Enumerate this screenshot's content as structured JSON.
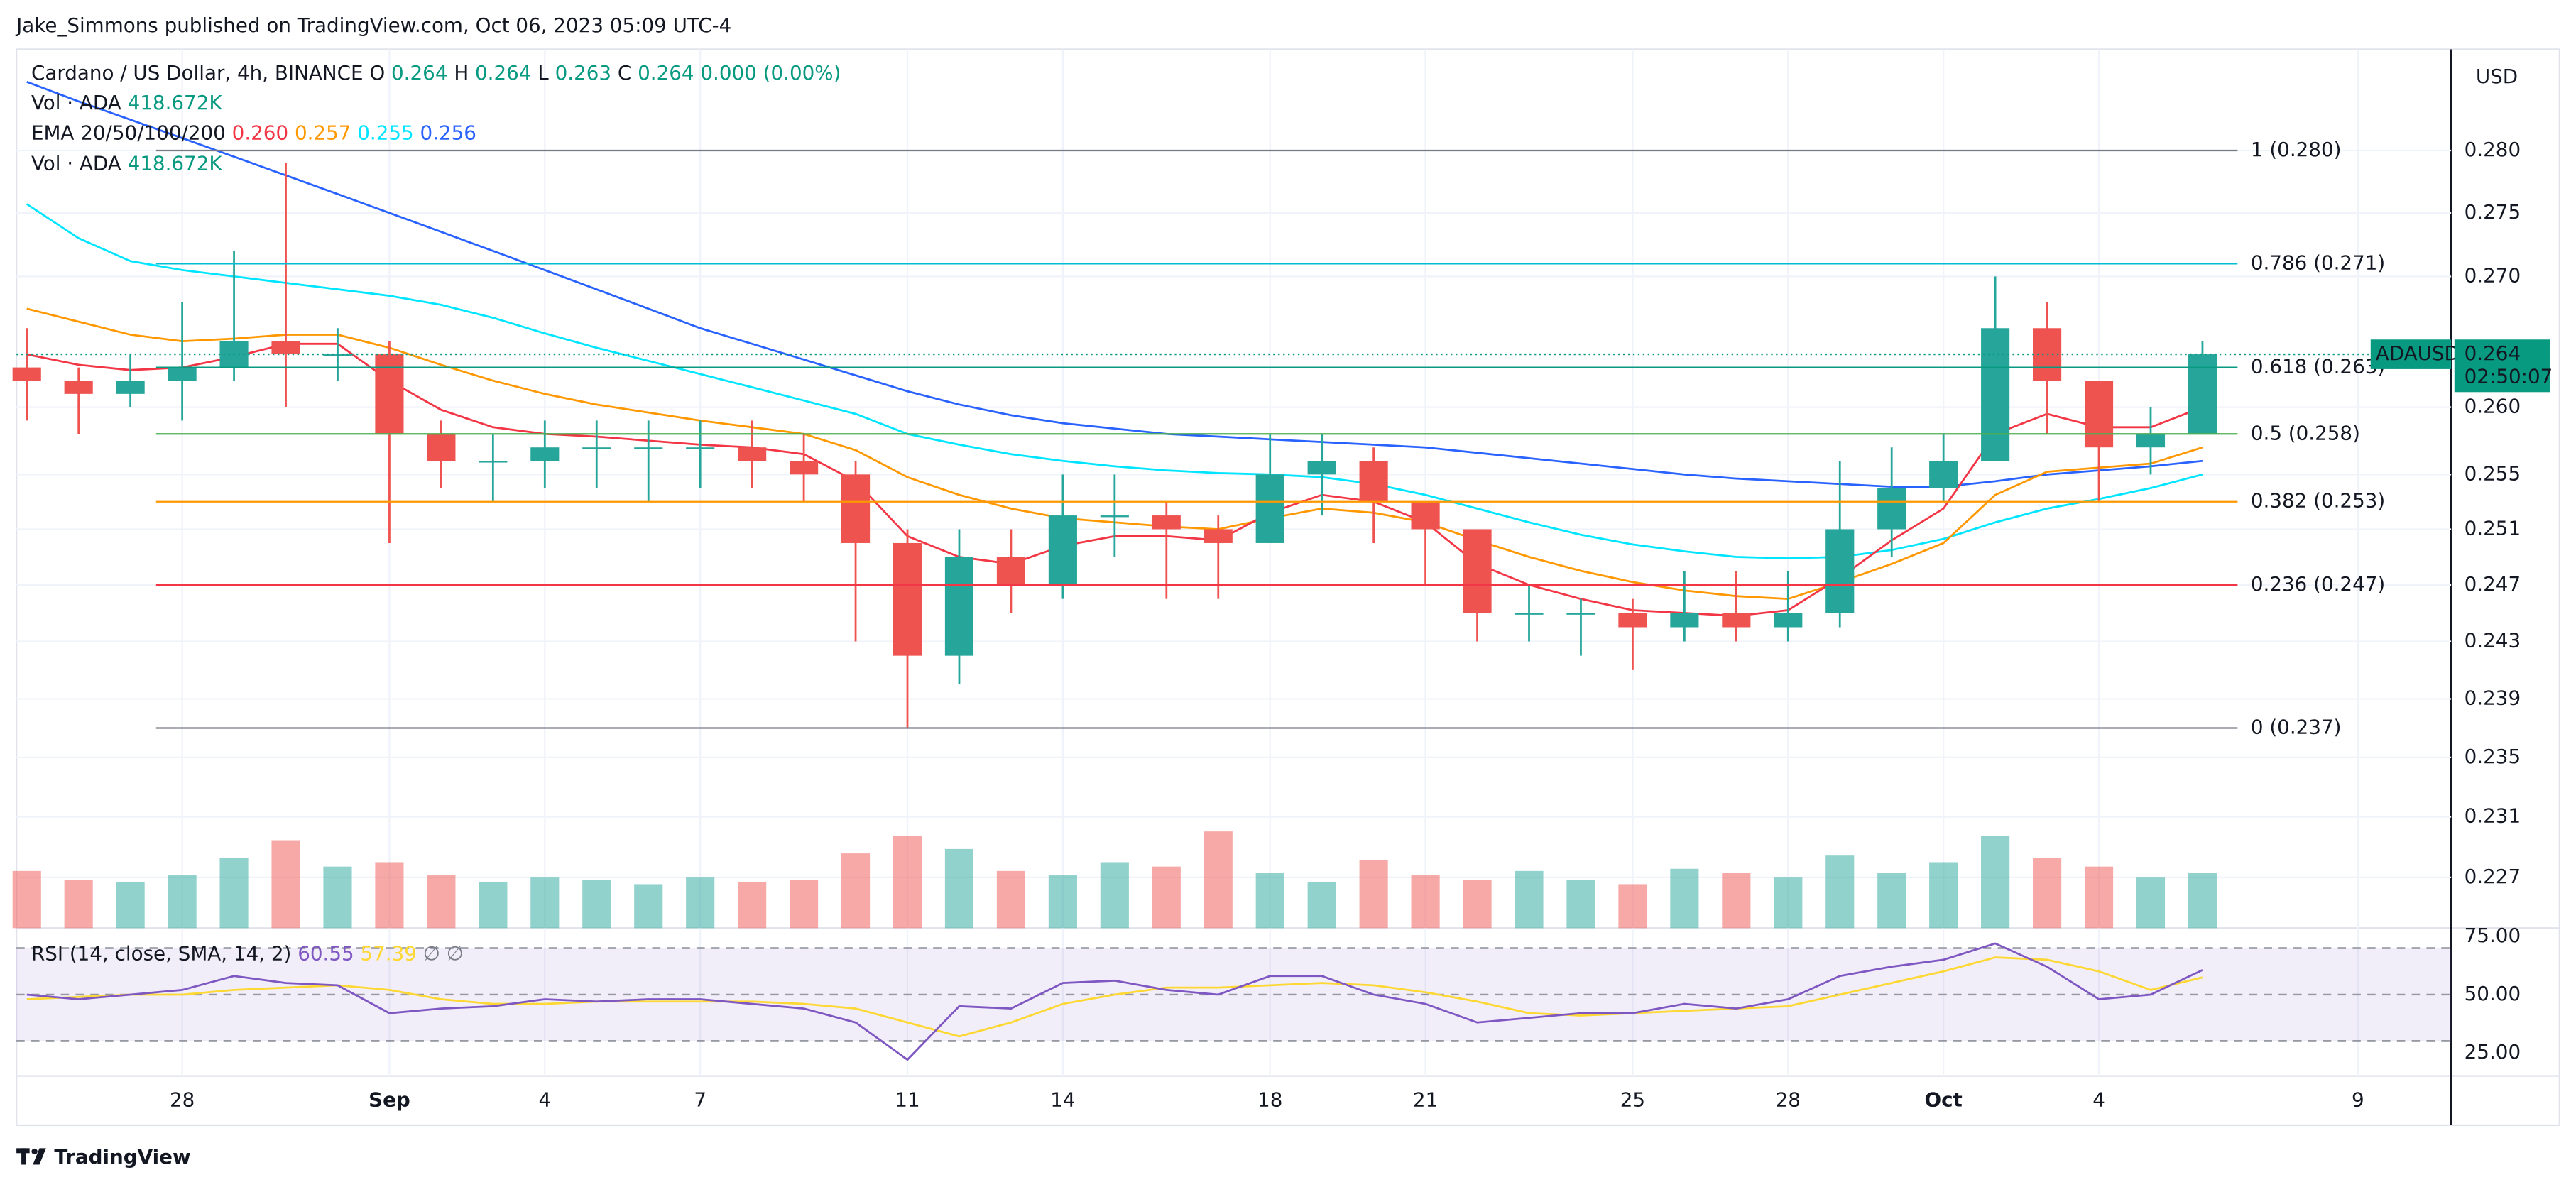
{
  "header": {
    "publisher": "Jake_Simmons published on TradingView.com, Oct 06, 2023 05:09 UTC-4"
  },
  "footer": {
    "brand": "TradingView"
  },
  "chart_data": {
    "type": "candlestick",
    "title": "Cardano / US Dollar, 4h, BINANCE",
    "ohlc_legend": [
      {
        "label": "O",
        "value": "0.264"
      },
      {
        "label": "H",
        "value": "0.264"
      },
      {
        "label": "L",
        "value": "0.263"
      },
      {
        "label": "C",
        "value": "0.264"
      }
    ],
    "change": "0.000 (0.00%)",
    "legend_color": "#089981",
    "indicator_legends": [
      {
        "label": "Vol · ADA",
        "values": [
          {
            "text": "418.672K",
            "color": "#089981"
          }
        ]
      },
      {
        "label": "EMA 20/50/100/200",
        "values": [
          {
            "text": "0.260",
            "color": "#f23645"
          },
          {
            "text": "0.257",
            "color": "#ff9800"
          },
          {
            "text": "0.255",
            "color": "#00e5ff"
          },
          {
            "text": "0.256",
            "color": "#2962ff"
          }
        ]
      },
      {
        "label": "Vol · ADA",
        "values": [
          {
            "text": "418.672K",
            "color": "#089981"
          }
        ]
      }
    ],
    "currency": "USD",
    "up_color": "#26a69a",
    "down_color": "#ef5350",
    "x": [
      -3,
      -2,
      -1,
      0,
      1,
      2,
      3,
      4,
      5,
      6,
      7,
      8,
      9,
      10,
      11,
      12,
      13,
      14,
      15,
      16,
      17,
      18,
      19,
      20,
      21,
      22,
      23,
      24,
      25,
      26,
      27,
      28,
      29,
      30,
      31,
      32,
      33,
      34,
      35,
      36,
      37,
      38,
      39
    ],
    "xlim": [
      -3.2,
      43.8
    ],
    "xticks": [
      {
        "value": 0,
        "label": "28"
      },
      {
        "value": 4,
        "label": "Sep"
      },
      {
        "value": 7,
        "label": "4"
      },
      {
        "value": 10,
        "label": "7"
      },
      {
        "value": 14,
        "label": "11"
      },
      {
        "value": 17,
        "label": "14"
      },
      {
        "value": 21,
        "label": "18"
      },
      {
        "value": 24,
        "label": "21"
      },
      {
        "value": 28,
        "label": "25"
      },
      {
        "value": 31,
        "label": "28"
      },
      {
        "value": 34,
        "label": "Oct"
      },
      {
        "value": 37,
        "label": "4"
      },
      {
        "value": 42,
        "label": "9"
      }
    ],
    "open": [
      0.263,
      0.262,
      0.261,
      0.262,
      0.263,
      0.265,
      0.264,
      0.264,
      0.258,
      0.256,
      0.256,
      0.257,
      0.257,
      0.257,
      0.257,
      0.256,
      0.255,
      0.25,
      0.242,
      0.249,
      0.247,
      0.252,
      0.252,
      0.251,
      0.25,
      0.255,
      0.256,
      0.253,
      0.251,
      0.245,
      0.245,
      0.245,
      0.244,
      0.245,
      0.244,
      0.245,
      0.251,
      0.254,
      0.256,
      0.266,
      0.262,
      0.257,
      0.258
    ],
    "high": [
      0.266,
      0.263,
      0.264,
      0.268,
      0.272,
      0.279,
      0.266,
      0.265,
      0.259,
      0.258,
      0.259,
      0.259,
      0.259,
      0.259,
      0.259,
      0.258,
      0.256,
      0.251,
      0.251,
      0.251,
      0.255,
      0.255,
      0.253,
      0.252,
      0.258,
      0.258,
      0.257,
      0.253,
      0.251,
      0.247,
      0.246,
      0.246,
      0.248,
      0.248,
      0.248,
      0.256,
      0.257,
      0.258,
      0.27,
      0.268,
      0.262,
      0.26,
      0.265
    ],
    "low": [
      0.259,
      0.258,
      0.26,
      0.259,
      0.262,
      0.26,
      0.262,
      0.25,
      0.254,
      0.253,
      0.254,
      0.254,
      0.253,
      0.254,
      0.254,
      0.253,
      0.243,
      0.237,
      0.24,
      0.245,
      0.246,
      0.249,
      0.246,
      0.246,
      0.25,
      0.252,
      0.25,
      0.247,
      0.243,
      0.243,
      0.242,
      0.241,
      0.243,
      0.243,
      0.243,
      0.244,
      0.249,
      0.253,
      0.256,
      0.258,
      0.253,
      0.255,
      0.258
    ],
    "close": [
      0.262,
      0.261,
      0.262,
      0.263,
      0.265,
      0.264,
      0.264,
      0.258,
      0.256,
      0.256,
      0.257,
      0.257,
      0.257,
      0.257,
      0.256,
      0.255,
      0.25,
      0.242,
      0.249,
      0.247,
      0.252,
      0.252,
      0.251,
      0.25,
      0.255,
      0.256,
      0.253,
      0.251,
      0.245,
      0.245,
      0.245,
      0.244,
      0.245,
      0.244,
      0.245,
      0.251,
      0.254,
      0.256,
      0.266,
      0.262,
      0.257,
      0.258,
      0.264
    ],
    "volume": [
      2600,
      2200,
      2100,
      2400,
      3200,
      4000,
      2800,
      3000,
      2400,
      2100,
      2300,
      2200,
      2000,
      2300,
      2100,
      2200,
      3400,
      4200,
      3600,
      2600,
      2400,
      3000,
      2800,
      4400,
      2500,
      2100,
      3100,
      2400,
      2200,
      2600,
      2200,
      2000,
      2700,
      2500,
      2300,
      3300,
      2500,
      3000,
      4200,
      3200,
      2800,
      2300,
      2500
    ],
    "volume_ylim": [
      0,
      40000
    ],
    "overlays": [
      {
        "color": "#2962ff",
        "values": [
          0.2856,
          0.284,
          0.2825,
          0.281,
          0.2795,
          0.278,
          0.2765,
          0.275,
          0.2735,
          0.272,
          0.2705,
          0.269,
          0.2675,
          0.266,
          0.2648,
          0.2636,
          0.2624,
          0.2612,
          0.2602,
          0.2594,
          0.2588,
          0.2584,
          0.258,
          0.2578,
          0.2576,
          0.2574,
          0.2572,
          0.257,
          0.2566,
          0.2562,
          0.2558,
          0.2554,
          0.255,
          0.2547,
          0.2545,
          0.2543,
          0.2541,
          0.2541,
          0.2545,
          0.255,
          0.2553,
          0.2556,
          0.256
        ]
      },
      {
        "color": "#00e5ff",
        "values": [
          0.2757,
          0.273,
          0.2712,
          0.2705,
          0.27,
          0.2695,
          0.269,
          0.2685,
          0.2678,
          0.2668,
          0.2656,
          0.2645,
          0.2635,
          0.2625,
          0.2615,
          0.2605,
          0.2595,
          0.258,
          0.2572,
          0.2565,
          0.256,
          0.2556,
          0.2553,
          0.2551,
          0.255,
          0.2548,
          0.2543,
          0.2535,
          0.2525,
          0.2515,
          0.2506,
          0.2499,
          0.2494,
          0.249,
          0.2489,
          0.249,
          0.2495,
          0.2503,
          0.2515,
          0.2525,
          0.2532,
          0.254,
          0.255
        ]
      },
      {
        "color": "#ff9800",
        "values": [
          0.2675,
          0.2665,
          0.2655,
          0.265,
          0.2652,
          0.2655,
          0.2655,
          0.2645,
          0.2632,
          0.262,
          0.261,
          0.2602,
          0.2596,
          0.259,
          0.2585,
          0.258,
          0.2568,
          0.2548,
          0.2535,
          0.2525,
          0.2518,
          0.2515,
          0.2512,
          0.251,
          0.2518,
          0.2525,
          0.2522,
          0.2515,
          0.2502,
          0.249,
          0.248,
          0.2472,
          0.2466,
          0.2462,
          0.246,
          0.2472,
          0.2485,
          0.25,
          0.2535,
          0.2552,
          0.2555,
          0.2558,
          0.257
        ]
      },
      {
        "color": "#f23645",
        "values": [
          0.264,
          0.2632,
          0.2628,
          0.263,
          0.2638,
          0.2648,
          0.2648,
          0.262,
          0.2598,
          0.2585,
          0.258,
          0.2578,
          0.2575,
          0.2572,
          0.257,
          0.2565,
          0.2545,
          0.2505,
          0.249,
          0.2485,
          0.2498,
          0.2505,
          0.2505,
          0.2502,
          0.2522,
          0.2535,
          0.253,
          0.2515,
          0.2485,
          0.247,
          0.246,
          0.2452,
          0.245,
          0.2448,
          0.2452,
          0.2475,
          0.2502,
          0.2525,
          0.258,
          0.2595,
          0.2585,
          0.2585,
          0.26
        ]
      }
    ],
    "log": true,
    "ylim": [
      0.2237,
      0.2883
    ],
    "yticks": [
      {
        "value": 0.28,
        "label": "0.280"
      },
      {
        "value": 0.275,
        "label": "0.275"
      },
      {
        "value": 0.27,
        "label": "0.270"
      },
      {
        "value": 0.26,
        "label": "0.260"
      },
      {
        "value": 0.255,
        "label": "0.255"
      },
      {
        "value": 0.251,
        "label": "0.251"
      },
      {
        "value": 0.247,
        "label": "0.247"
      },
      {
        "value": 0.243,
        "label": "0.243"
      },
      {
        "value": 0.239,
        "label": "0.239"
      },
      {
        "value": 0.235,
        "label": "0.235"
      },
      {
        "value": 0.231,
        "label": "0.231"
      },
      {
        "value": 0.227,
        "label": "0.227"
      }
    ],
    "grid": true,
    "fib_levels": [
      {
        "label": "1 (0.280)",
        "value": 0.28,
        "color": "#787b86"
      },
      {
        "label": "0.786 (0.271)",
        "value": 0.271,
        "color": "#00bcd4"
      },
      {
        "label": "0.618 (0.263)",
        "value": 0.263,
        "color": "#089981"
      },
      {
        "label": "0.5 (0.258)",
        "value": 0.258,
        "color": "#4caf50"
      },
      {
        "label": "0.382 (0.253)",
        "value": 0.253,
        "color": "#ff9800"
      },
      {
        "label": "0.236 (0.247)",
        "value": 0.247,
        "color": "#f23645"
      },
      {
        "label": "0 (0.237)",
        "value": 0.237,
        "color": "#787b86"
      }
    ],
    "last_price": {
      "symbol": "ADAUSD",
      "value": 0.264,
      "label": "0.264",
      "countdown": "02:50:07",
      "color": "#089981"
    },
    "rsi": {
      "legend": "RSI (14, close, SMA, 14, 2)",
      "legend_values": [
        {
          "text": "60.55",
          "color": "#7e57c2"
        },
        {
          "text": "57.39",
          "color": "#fdd835"
        },
        {
          "text": "∅",
          "color": "#787b86"
        },
        {
          "text": "∅",
          "color": "#787b86"
        }
      ],
      "values": [
        50,
        48,
        50,
        52,
        58,
        55,
        54,
        42,
        44,
        45,
        48,
        47,
        48,
        48,
        46,
        44,
        38,
        22,
        45,
        44,
        55,
        56,
        52,
        50,
        58,
        58,
        50,
        46,
        38,
        40,
        42,
        42,
        46,
        44,
        48,
        58,
        62,
        65,
        72,
        62,
        48,
        50,
        60.55
      ],
      "sma": [
        48,
        49,
        50,
        50,
        52,
        53,
        54,
        52,
        48,
        46,
        46,
        47,
        47,
        47,
        47,
        46,
        44,
        38,
        32,
        38,
        46,
        50,
        53,
        53,
        54,
        55,
        54,
        51,
        47,
        42,
        41,
        42,
        43,
        44,
        45,
        50,
        55,
        60,
        66,
        65,
        60,
        52,
        57.39
      ],
      "color": "#7e57c2",
      "sma_color": "#fdd835",
      "band": [
        30,
        70
      ],
      "ylim": [
        15,
        78.6
      ],
      "yticks": [
        {
          "value": 75,
          "label": "75.00"
        },
        {
          "value": 50,
          "label": "50.00"
        },
        {
          "value": 25,
          "label": "25.00"
        }
      ]
    }
  }
}
